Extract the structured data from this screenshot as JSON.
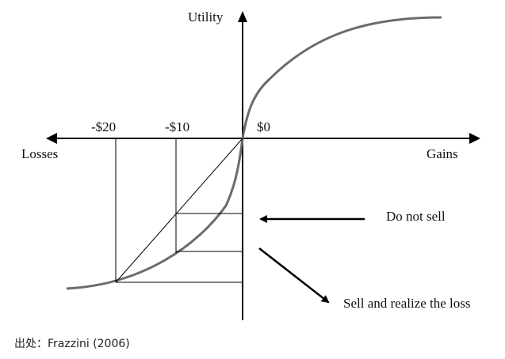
{
  "figure": {
    "y_axis_label": "Utility",
    "x_left_label": "Losses",
    "x_right_label": "Gains",
    "tick_labels": [
      "-$20",
      "-$10",
      "$0"
    ],
    "annotation_hold": "Do not sell",
    "annotation_sell": "Sell and realize the loss",
    "curve_color": "#6b6b6b",
    "line_color": "#000000"
  },
  "caption": {
    "text": "出处：Frazzini (2006)"
  }
}
